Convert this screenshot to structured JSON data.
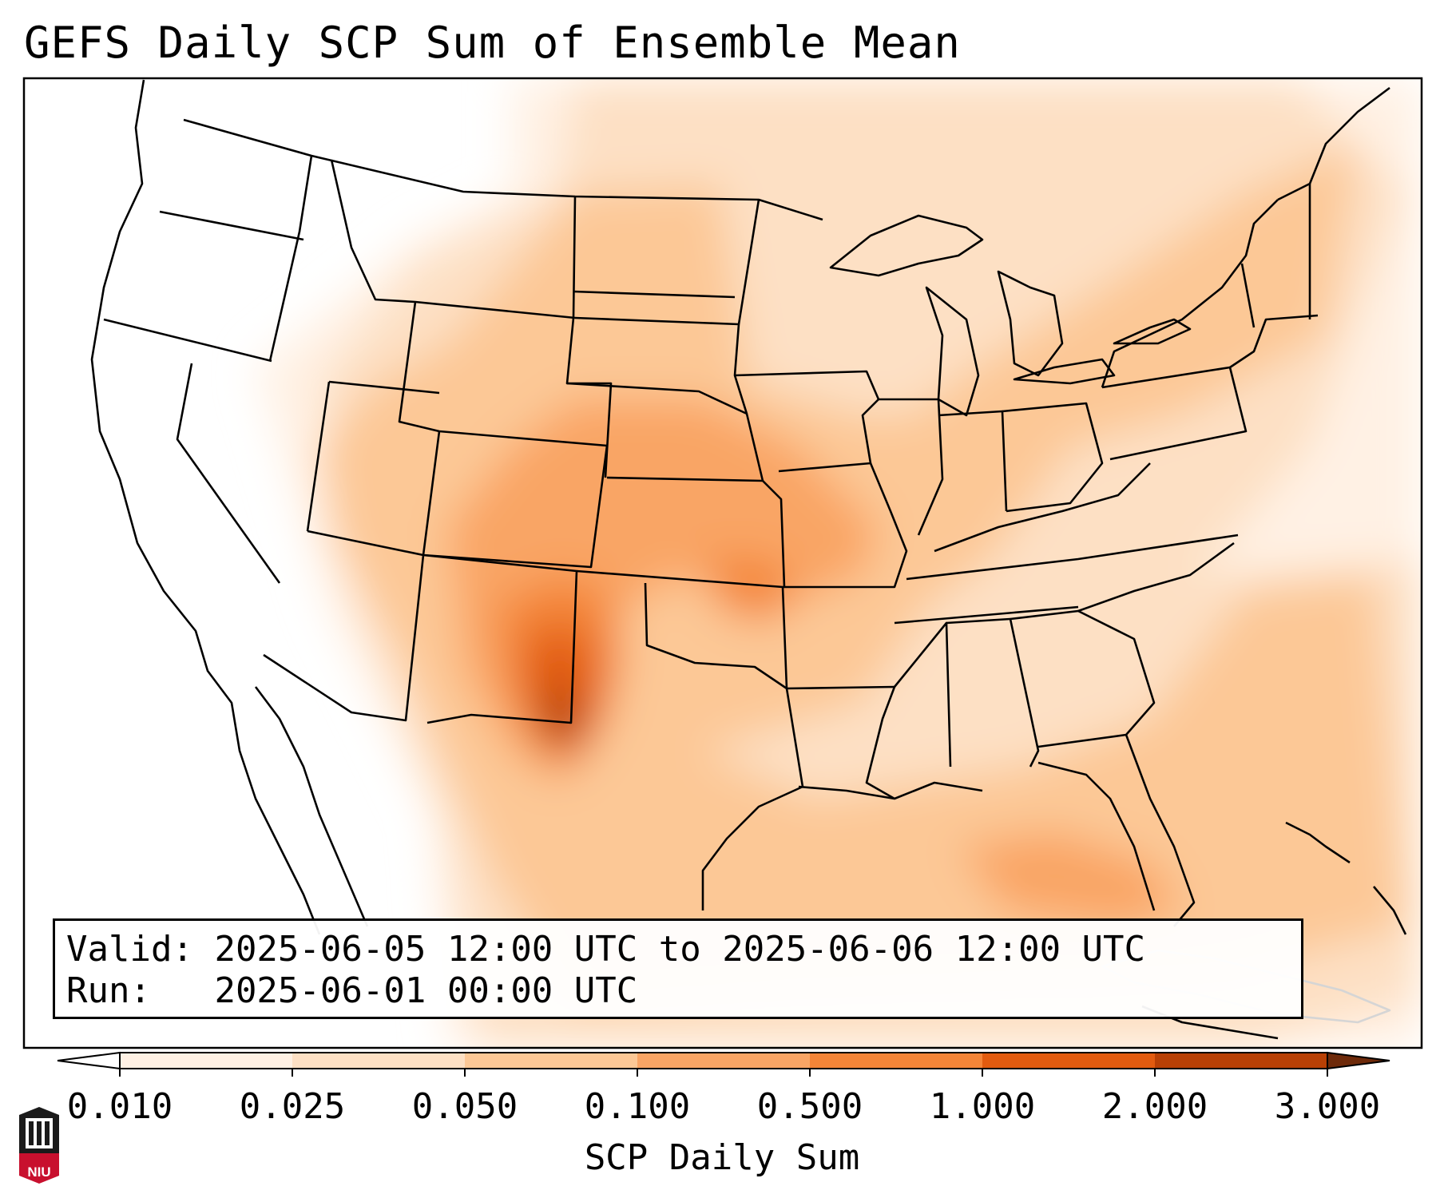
{
  "title": "GEFS Daily SCP Sum of Ensemble Mean",
  "info": {
    "valid_label": "Valid:",
    "valid_value": "2025-06-05 12:00 UTC to 2025-06-06 12:00 UTC",
    "run_label": "Run:",
    "run_value": "2025-06-01 00:00 UTC"
  },
  "colorbar": {
    "label": "SCP Daily Sum",
    "ticks": [
      "0.010",
      "0.025",
      "0.050",
      "0.100",
      "0.500",
      "1.000",
      "2.000",
      "3.000"
    ],
    "colors": [
      "#fff1e4",
      "#fde0c4",
      "#fcc896",
      "#f9a565",
      "#f48538",
      "#e25b0f",
      "#b84005"
    ],
    "extend": "both",
    "under_color": "#ffffff",
    "over_color": "#6e2a0a"
  },
  "logo": {
    "text": "NIU",
    "color": "#c8102e"
  },
  "colors": {
    "state_borders": "#000000",
    "background": "#ffffff"
  }
}
